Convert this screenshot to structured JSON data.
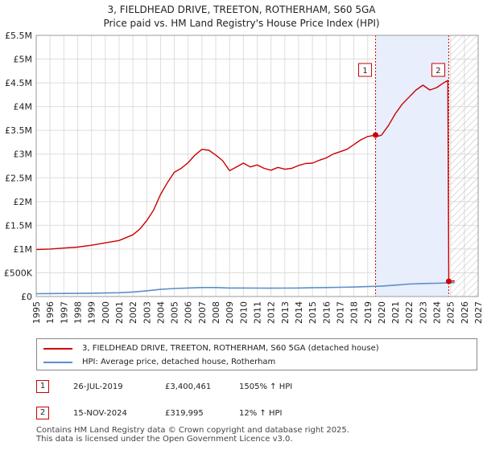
{
  "title_line1": "3, FIELDHEAD DRIVE, TREETON, ROTHERHAM, S60 5GA",
  "title_line2": "Price paid vs. HM Land Registry's House Price Index (HPI)",
  "legend": {
    "property_label": "3, FIELDHEAD DRIVE, TREETON, ROTHERHAM, S60 5GA (detached house)",
    "hpi_label": "HPI: Average price, detached house, Rotherham"
  },
  "transactions": [
    {
      "num": "1",
      "date": "26-JUL-2019",
      "price": "£3,400,461",
      "hpi": "1505% ↑ HPI"
    },
    {
      "num": "2",
      "date": "15-NOV-2024",
      "price": "£319,995",
      "hpi": "12% ↑ HPI"
    }
  ],
  "footer": {
    "line1": "Contains HM Land Registry data © Crown copyright and database right 2025.",
    "line2": "This data is licensed under the Open Government Licence v3.0."
  },
  "colors": {
    "property": "#cc0000",
    "hpi": "#5b8fc9",
    "shade": "#e8eefb",
    "grid": "#dddddd"
  },
  "chart_data": {
    "type": "line",
    "title": "3, FIELDHEAD DRIVE, TREETON, ROTHERHAM, S60 5GA — Price paid vs. HM Land Registry's House Price Index (HPI)",
    "xlabel": "",
    "ylabel": "",
    "xlim": [
      1995,
      2027
    ],
    "ylim": [
      0,
      5500000
    ],
    "y_ticks": [
      0,
      500000,
      1000000,
      1500000,
      2000000,
      2500000,
      3000000,
      3500000,
      4000000,
      4500000,
      5000000,
      5500000
    ],
    "y_tick_labels": [
      "£0",
      "£500K",
      "£1M",
      "£1.5M",
      "£2M",
      "£2.5M",
      "£3M",
      "£3.5M",
      "£4M",
      "£4.5M",
      "£5M",
      "£5.5M"
    ],
    "x_ticks": [
      1995,
      1996,
      1997,
      1998,
      1999,
      2000,
      2001,
      2002,
      2003,
      2004,
      2005,
      2006,
      2007,
      2008,
      2009,
      2010,
      2011,
      2012,
      2013,
      2014,
      2015,
      2016,
      2017,
      2018,
      2019,
      2020,
      2021,
      2022,
      2023,
      2024,
      2025,
      2026,
      2027
    ],
    "highlight_range": [
      2019.57,
      2024.87
    ],
    "hatch_from": 2025.0,
    "series": [
      {
        "name": "3, FIELDHEAD DRIVE, TREETON, ROTHERHAM, S60 5GA (detached house)",
        "x": [
          1995.0,
          1996.0,
          1997.0,
          1998.0,
          1999.0,
          2000.0,
          2001.0,
          2002.0,
          2002.5,
          2003.0,
          2003.5,
          2004.0,
          2004.5,
          2005.0,
          2005.5,
          2006.0,
          2006.5,
          2007.0,
          2007.5,
          2008.0,
          2008.5,
          2009.0,
          2009.5,
          2010.0,
          2010.5,
          2011.0,
          2011.5,
          2012.0,
          2012.5,
          2013.0,
          2013.5,
          2014.0,
          2014.5,
          2015.0,
          2015.5,
          2016.0,
          2016.5,
          2017.0,
          2017.5,
          2018.0,
          2018.5,
          2019.0,
          2019.57,
          2019.8,
          2020.0,
          2020.5,
          2021.0,
          2021.5,
          2022.0,
          2022.5,
          2023.0,
          2023.5,
          2024.0,
          2024.5,
          2024.8,
          2024.87,
          2025.3
        ],
        "y": [
          990000,
          1000000,
          1020000,
          1040000,
          1080000,
          1130000,
          1180000,
          1300000,
          1420000,
          1600000,
          1820000,
          2150000,
          2400000,
          2620000,
          2700000,
          2820000,
          2980000,
          3100000,
          3080000,
          2980000,
          2860000,
          2650000,
          2730000,
          2810000,
          2730000,
          2770000,
          2700000,
          2660000,
          2720000,
          2680000,
          2700000,
          2760000,
          2800000,
          2810000,
          2870000,
          2920000,
          3000000,
          3050000,
          3100000,
          3200000,
          3300000,
          3370000,
          3400461,
          3380000,
          3400000,
          3600000,
          3850000,
          4050000,
          4200000,
          4350000,
          4450000,
          4350000,
          4400000,
          4500000,
          4550000,
          319995,
          330000
        ]
      },
      {
        "name": "HPI: Average price, detached house, Rotherham",
        "x": [
          1995,
          1996,
          1997,
          1998,
          1999,
          2000,
          2001,
          2002,
          2003,
          2004,
          2005,
          2006,
          2007,
          2008,
          2009,
          2010,
          2011,
          2012,
          2013,
          2014,
          2015,
          2016,
          2017,
          2018,
          2019,
          2020,
          2021,
          2022,
          2023,
          2024,
          2025,
          2025.3
        ],
        "y": [
          60000,
          62000,
          64000,
          66000,
          69000,
          74000,
          80000,
          95000,
          120000,
          150000,
          170000,
          180000,
          190000,
          190000,
          180000,
          180000,
          178000,
          176000,
          178000,
          180000,
          185000,
          190000,
          195000,
          200000,
          210000,
          218000,
          240000,
          262000,
          275000,
          280000,
          290000,
          295000
        ]
      }
    ],
    "annotations": [
      {
        "label": "1",
        "x": 2019.57,
        "y": 3400461
      },
      {
        "label": "2",
        "x": 2024.87,
        "y": 319995
      }
    ]
  }
}
